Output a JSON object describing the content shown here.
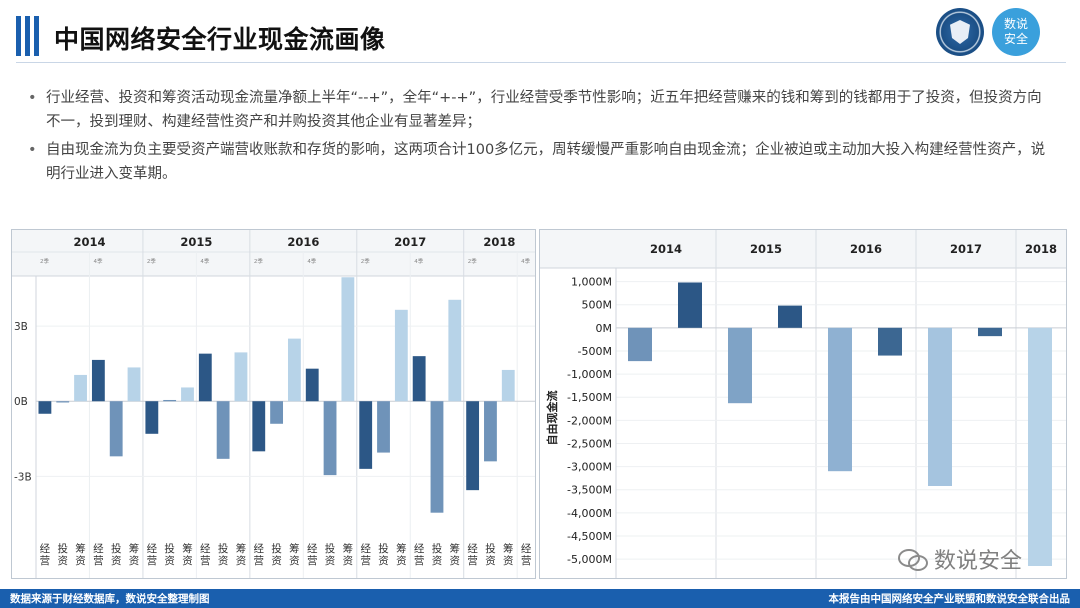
{
  "title": "中国网络安全行业现金流画像",
  "logo": {
    "badge_text_1": "数说",
    "badge_text_2": "安全"
  },
  "bullets": [
    "行业经营、投资和筹资活动现金流量净额上半年“--+”，全年“+-+”，行业经营受季节性影响；近五年把经营赚来的钱和筹到的钱都用于了投资，但投资方向不一，投到理财、构建经营性资产和并购投资其他企业有显著差异；",
    "自由现金流为负主要受资产端营收账款和存货的影响，这两项合计100多亿元，周转缓慢严重影响自由现金流；企业被迫或主动加大投入构建经营性资产，说明行业进入变革期。"
  ],
  "footer": {
    "source": "数据来源于财经数据库，数说安全整理制图",
    "publisher": "本报告由中国网络安全产业联盟和数说安全联合出品"
  },
  "watermark": "数说安全",
  "colors": {
    "operating": "#2c5786",
    "investing": "#6f93b9",
    "financing": "#b7d3e8",
    "brand": "#1a5fae"
  },
  "chart_data": [
    {
      "type": "bar",
      "title": "",
      "years": [
        "2014",
        "2015",
        "2016",
        "2017",
        "2018"
      ],
      "period_labels": [
        "2季",
        "4季"
      ],
      "category_labels": [
        "经营",
        "投资",
        "筹资"
      ],
      "categories": [
        "2014 2季 经营",
        "2014 2季 投资",
        "2014 2季 筹资",
        "2014 4季 经营",
        "2014 4季 投资",
        "2014 4季 筹资",
        "2015 2季 经营",
        "2015 2季 投资",
        "2015 2季 筹资",
        "2015 4季 经营",
        "2015 4季 投资",
        "2015 4季 筹资",
        "2016 2季 经营",
        "2016 2季 投资",
        "2016 2季 筹资",
        "2016 4季 经营",
        "2016 4季 投资",
        "2016 4季 筹资",
        "2017 2季 经营",
        "2017 2季 投资",
        "2017 2季 筹资",
        "2017 4季 经营",
        "2017 4季 投资",
        "2017 4季 筹资",
        "2018 2季 经营",
        "2018 2季 投资",
        "2018 2季 筹资",
        "2018 4季 经营"
      ],
      "values": [
        -0.5,
        -0.05,
        1.05,
        1.65,
        -2.2,
        1.35,
        -1.3,
        0.05,
        0.55,
        1.9,
        -2.3,
        1.95,
        -2.0,
        -0.9,
        2.5,
        1.3,
        -2.95,
        4.95,
        -2.7,
        -2.05,
        3.65,
        1.8,
        -4.45,
        4.05,
        -3.55,
        -2.4,
        1.25,
        0
      ],
      "category_kind": [
        "经营",
        "投资",
        "筹资",
        "经营",
        "投资",
        "筹资",
        "经营",
        "投资",
        "筹资",
        "经营",
        "投资",
        "筹资",
        "经营",
        "投资",
        "筹资",
        "经营",
        "投资",
        "筹资",
        "经营",
        "投资",
        "筹资",
        "经营",
        "投资",
        "筹资",
        "经营",
        "投资",
        "筹资",
        "经营"
      ],
      "y_ticks": [
        "3B",
        "0B",
        "-3B"
      ],
      "y_tick_values": [
        3,
        0,
        -3
      ],
      "ylim": [
        -5.7,
        5.0
      ],
      "grid": true
    },
    {
      "type": "bar",
      "title": "",
      "ylabel": "自由现金流",
      "years": [
        "2014",
        "2015",
        "2016",
        "2017",
        "2018"
      ],
      "categories": [
        "2014 上",
        "2014 下",
        "2015 上",
        "2015 下",
        "2016 上",
        "2016 下",
        "2017 上",
        "2017 下",
        "2018 上"
      ],
      "values": [
        -720,
        980,
        -1630,
        480,
        -3100,
        -600,
        -3420,
        -180,
        -5150
      ],
      "y_ticks": [
        "1,000M",
        "500M",
        "0M",
        "-500M",
        "-1,000M",
        "-1,500M",
        "-2,000M",
        "-2,500M",
        "-3,000M",
        "-3,500M",
        "-4,000M",
        "-4,500M",
        "-5,000M"
      ],
      "y_tick_values": [
        1000,
        500,
        0,
        -500,
        -1000,
        -1500,
        -2000,
        -2500,
        -3000,
        -3500,
        -4000,
        -4500,
        -5000
      ],
      "ylim": [
        -5150,
        1250
      ],
      "grid": true
    }
  ]
}
